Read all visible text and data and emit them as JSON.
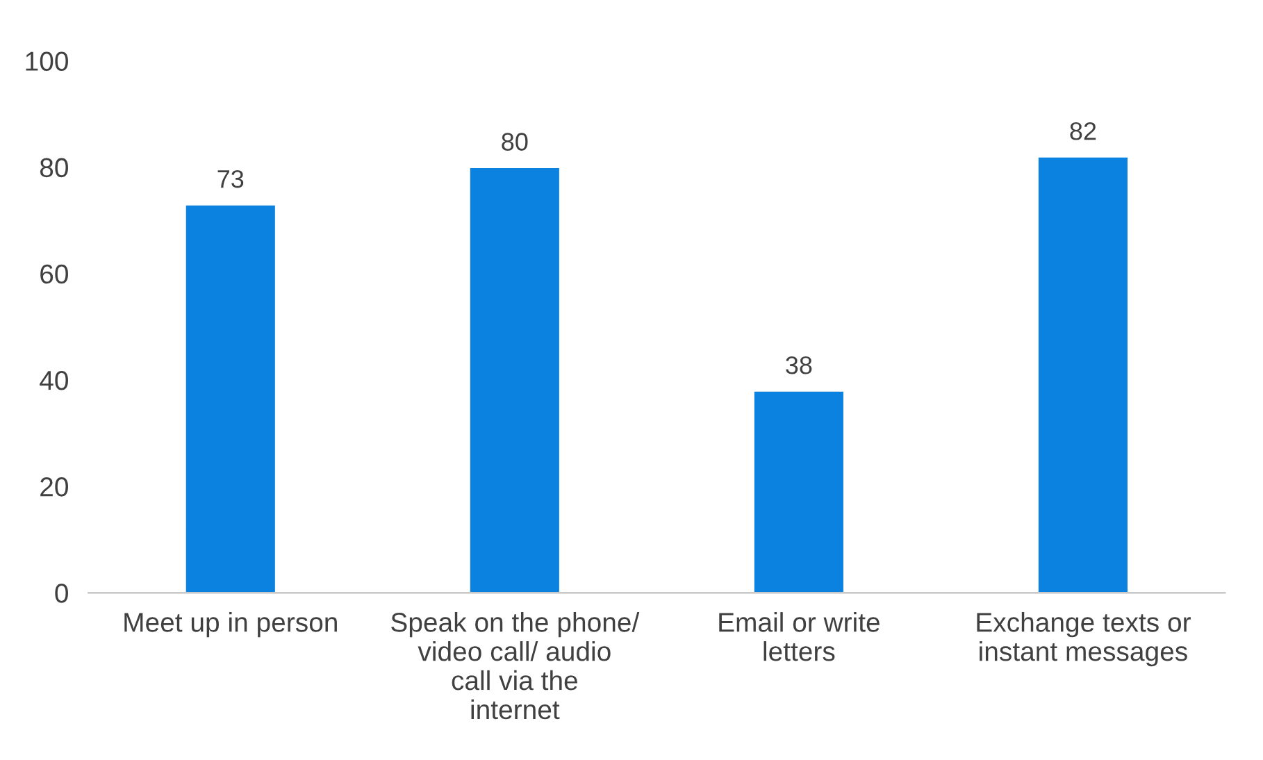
{
  "chart_data": {
    "type": "bar",
    "categories": [
      "Meet up in person",
      "Speak on the phone/ video call/ audio call via the internet",
      "Email or write letters",
      "Exchange texts or instant messages"
    ],
    "values": [
      73,
      80,
      38,
      82
    ],
    "color": "#0b82e0",
    "ylim": [
      0,
      100
    ],
    "yticks": [
      0,
      20,
      40,
      60,
      80,
      100
    ],
    "data_labels": true
  }
}
